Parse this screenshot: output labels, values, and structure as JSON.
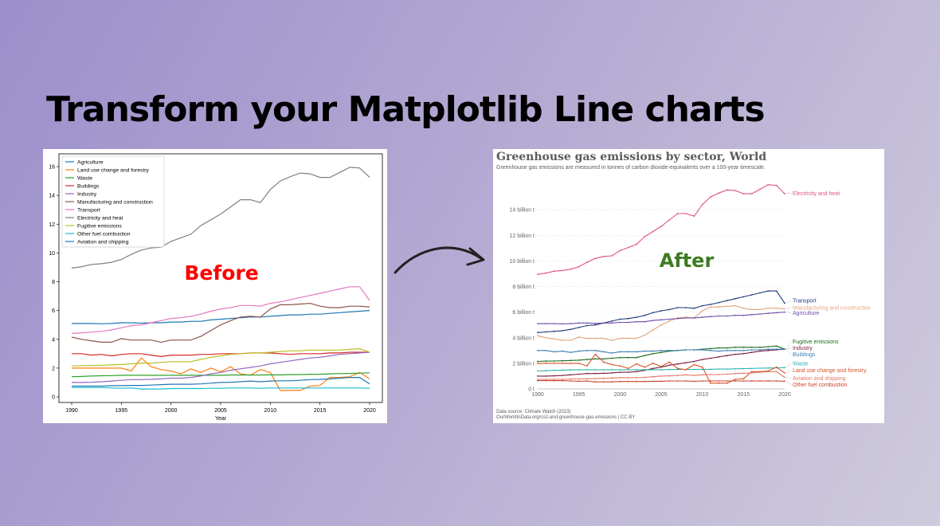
{
  "headline": "Transform your Matplotlib Line charts",
  "before_label": "Before",
  "after_label": "After",
  "before_label_color": "#ff0000",
  "after_label_color": "#3d7b22",
  "after_chart": {
    "title": "Greenhouse gas emissions by sector, World",
    "subtitle": "Greenhouse gas emissions are measured in tonnes of carbon dioxide-equivalents over a 100-year timescale.",
    "source": "Data source: Climate Watch (2023)",
    "credit": "OurWorldInData.org/co2-and-greenhouse-gas-emissions | CC BY"
  },
  "chart_data": [
    {
      "type": "line",
      "xlabel": "Year",
      "ylabel": "",
      "title": "",
      "xlim": [
        1990,
        2020
      ],
      "ylim": [
        0,
        16.5
      ],
      "xticks": [
        1990,
        1995,
        2000,
        2005,
        2010,
        2015,
        2020
      ],
      "yticks": [
        0,
        2,
        4,
        6,
        8,
        10,
        12,
        14,
        16
      ],
      "legend_position": "top-left",
      "grid": false,
      "x": [
        1990,
        1991,
        1992,
        1993,
        1994,
        1995,
        1996,
        1997,
        1998,
        1999,
        2000,
        2001,
        2002,
        2003,
        2004,
        2005,
        2006,
        2007,
        2008,
        2009,
        2010,
        2011,
        2012,
        2013,
        2014,
        2015,
        2016,
        2017,
        2018,
        2019,
        2020
      ],
      "series": [
        {
          "name": "Agriculture",
          "color": "#1f77b4",
          "values": [
            5.1,
            5.1,
            5.1,
            5.08,
            5.1,
            5.15,
            5.15,
            5.12,
            5.15,
            5.15,
            5.2,
            5.2,
            5.25,
            5.25,
            5.35,
            5.4,
            5.45,
            5.5,
            5.55,
            5.55,
            5.6,
            5.65,
            5.7,
            5.7,
            5.75,
            5.75,
            5.8,
            5.85,
            5.9,
            5.95,
            6.0
          ]
        },
        {
          "name": "Land use change and forestry",
          "color": "#ff7f0e",
          "values": [
            2.0,
            2.0,
            2.0,
            2.0,
            2.0,
            2.0,
            1.8,
            2.7,
            2.1,
            1.9,
            1.8,
            1.6,
            1.95,
            1.7,
            2.0,
            1.75,
            2.1,
            1.6,
            1.5,
            1.9,
            1.7,
            0.45,
            0.45,
            0.45,
            0.75,
            0.8,
            1.35,
            1.35,
            1.4,
            1.7,
            1.25
          ]
        },
        {
          "name": "Waste",
          "color": "#2ca02c",
          "values": [
            1.4,
            1.42,
            1.45,
            1.47,
            1.48,
            1.5,
            1.5,
            1.5,
            1.5,
            1.5,
            1.5,
            1.5,
            1.5,
            1.5,
            1.5,
            1.5,
            1.52,
            1.52,
            1.52,
            1.52,
            1.53,
            1.53,
            1.55,
            1.55,
            1.57,
            1.58,
            1.6,
            1.62,
            1.63,
            1.65,
            1.67
          ]
        },
        {
          "name": "Buildings",
          "color": "#d62728",
          "values": [
            3.0,
            3.0,
            2.9,
            2.95,
            2.85,
            2.95,
            3.0,
            3.0,
            2.9,
            2.8,
            2.9,
            2.9,
            2.9,
            2.95,
            2.95,
            3.0,
            3.0,
            3.0,
            3.05,
            3.05,
            3.05,
            3.0,
            2.95,
            3.0,
            3.0,
            3.0,
            3.05,
            3.05,
            3.1,
            3.1,
            3.1
          ]
        },
        {
          "name": "Industry",
          "color": "#9467bd",
          "values": [
            1.0,
            1.0,
            1.02,
            1.05,
            1.1,
            1.15,
            1.2,
            1.2,
            1.22,
            1.25,
            1.3,
            1.3,
            1.35,
            1.45,
            1.6,
            1.7,
            1.85,
            1.95,
            2.05,
            2.15,
            2.3,
            2.4,
            2.5,
            2.6,
            2.7,
            2.75,
            2.85,
            2.95,
            3.0,
            3.05,
            3.1
          ]
        },
        {
          "name": "Manufacturing and construction",
          "color": "#8c564b",
          "values": [
            4.15,
            4.0,
            3.9,
            3.8,
            3.8,
            4.05,
            3.95,
            3.95,
            3.95,
            3.8,
            3.95,
            3.95,
            3.95,
            4.2,
            4.6,
            5.0,
            5.3,
            5.55,
            5.6,
            5.55,
            6.1,
            6.4,
            6.4,
            6.45,
            6.5,
            6.3,
            6.2,
            6.2,
            6.3,
            6.3,
            6.25
          ]
        },
        {
          "name": "Transport",
          "color": "#e377c2",
          "values": [
            4.4,
            4.45,
            4.5,
            4.55,
            4.65,
            4.8,
            4.95,
            5.0,
            5.15,
            5.3,
            5.45,
            5.5,
            5.6,
            5.75,
            5.95,
            6.1,
            6.2,
            6.35,
            6.35,
            6.3,
            6.5,
            6.6,
            6.75,
            6.9,
            7.05,
            7.2,
            7.35,
            7.5,
            7.65,
            7.65,
            6.7
          ]
        },
        {
          "name": "Electricity and heat",
          "color": "#7f7f7f",
          "values": [
            8.95,
            9.05,
            9.2,
            9.25,
            9.35,
            9.55,
            9.9,
            10.2,
            10.35,
            10.4,
            10.8,
            11.05,
            11.3,
            11.9,
            12.3,
            12.7,
            13.2,
            13.7,
            13.7,
            13.5,
            14.4,
            15.0,
            15.3,
            15.55,
            15.5,
            15.25,
            15.25,
            15.6,
            15.95,
            15.9,
            15.25
          ]
        },
        {
          "name": "Fugitive emissions",
          "color": "#bcbd22",
          "values": [
            2.15,
            2.17,
            2.18,
            2.2,
            2.22,
            2.25,
            2.3,
            2.35,
            2.35,
            2.4,
            2.45,
            2.45,
            2.45,
            2.6,
            2.75,
            2.85,
            2.95,
            3.0,
            3.05,
            3.05,
            3.1,
            3.15,
            3.2,
            3.2,
            3.25,
            3.25,
            3.25,
            3.25,
            3.3,
            3.35,
            3.1
          ]
        },
        {
          "name": "Other fuel combustion",
          "color": "#17becf",
          "values": [
            0.65,
            0.65,
            0.65,
            0.65,
            0.62,
            0.6,
            0.62,
            0.55,
            0.55,
            0.55,
            0.58,
            0.58,
            0.58,
            0.58,
            0.6,
            0.6,
            0.62,
            0.62,
            0.62,
            0.6,
            0.62,
            0.62,
            0.62,
            0.62,
            0.62,
            0.62,
            0.62,
            0.62,
            0.62,
            0.62,
            0.6
          ]
        },
        {
          "name": "Aviation and shipping",
          "color": "#1f77b4",
          "values": [
            0.75,
            0.75,
            0.75,
            0.75,
            0.78,
            0.78,
            0.8,
            0.8,
            0.82,
            0.85,
            0.88,
            0.88,
            0.88,
            0.9,
            0.95,
            1.0,
            1.02,
            1.05,
            1.1,
            1.05,
            1.1,
            1.12,
            1.12,
            1.15,
            1.2,
            1.22,
            1.25,
            1.3,
            1.35,
            1.35,
            0.9
          ]
        }
      ]
    },
    {
      "type": "line",
      "title": "Greenhouse gas emissions by sector, World",
      "subtitle": "Greenhouse gas emissions are measured in tonnes of carbon dioxide-equivalents over a 100-year timescale.",
      "xlabel": "",
      "ylabel": "",
      "xlim": [
        1990,
        2020
      ],
      "ylim": [
        0,
        16.5
      ],
      "xticks": [
        1990,
        1995,
        2000,
        2005,
        2010,
        2015,
        2020
      ],
      "yticks": [
        0,
        2,
        4,
        6,
        8,
        10,
        12,
        14
      ],
      "ytick_labels": [
        "0 t",
        "2 billion t",
        "4 billion t",
        "6 billion t",
        "8 billion t",
        "10 billion t",
        "12 billion t",
        "14 billion t"
      ],
      "grid": true,
      "legend_position": "end-of-line labels",
      "x": [
        1990,
        1991,
        1992,
        1993,
        1994,
        1995,
        1996,
        1997,
        1998,
        1999,
        2000,
        2001,
        2002,
        2003,
        2004,
        2005,
        2006,
        2007,
        2008,
        2009,
        2010,
        2011,
        2012,
        2013,
        2014,
        2015,
        2016,
        2017,
        2018,
        2019,
        2020
      ],
      "series": [
        {
          "name": "Electricity and heat",
          "color": "#e2508a",
          "label_y": 15.3,
          "values": [
            8.95,
            9.05,
            9.2,
            9.25,
            9.35,
            9.55,
            9.9,
            10.2,
            10.35,
            10.4,
            10.8,
            11.05,
            11.3,
            11.9,
            12.3,
            12.7,
            13.2,
            13.7,
            13.7,
            13.5,
            14.4,
            15.0,
            15.3,
            15.55,
            15.5,
            15.25,
            15.25,
            15.6,
            15.95,
            15.9,
            15.25
          ]
        },
        {
          "name": "Transport",
          "color": "#1d3a7a",
          "label_y": 6.9,
          "values": [
            4.4,
            4.45,
            4.5,
            4.55,
            4.65,
            4.8,
            4.95,
            5.0,
            5.15,
            5.3,
            5.45,
            5.5,
            5.6,
            5.75,
            5.95,
            6.1,
            6.2,
            6.35,
            6.35,
            6.3,
            6.5,
            6.6,
            6.75,
            6.9,
            7.05,
            7.2,
            7.35,
            7.5,
            7.65,
            7.65,
            6.7
          ]
        },
        {
          "name": "Manufacturing and construction",
          "color": "#e0a57c",
          "label_y": 6.35,
          "values": [
            4.15,
            4.0,
            3.9,
            3.8,
            3.8,
            4.05,
            3.95,
            3.95,
            3.95,
            3.8,
            3.95,
            3.95,
            3.95,
            4.2,
            4.6,
            5.0,
            5.3,
            5.55,
            5.6,
            5.55,
            6.1,
            6.4,
            6.4,
            6.45,
            6.5,
            6.3,
            6.2,
            6.2,
            6.3,
            6.3,
            6.25
          ]
        },
        {
          "name": "Agriculture",
          "color": "#6d4ea8",
          "label_y": 5.95,
          "values": [
            5.1,
            5.1,
            5.1,
            5.08,
            5.1,
            5.15,
            5.15,
            5.12,
            5.15,
            5.15,
            5.2,
            5.2,
            5.25,
            5.25,
            5.35,
            5.4,
            5.45,
            5.5,
            5.55,
            5.55,
            5.6,
            5.65,
            5.7,
            5.7,
            5.75,
            5.75,
            5.8,
            5.85,
            5.9,
            5.95,
            6.0
          ]
        },
        {
          "name": "Fugitive emissions",
          "color": "#1e6b1e",
          "label_y": 3.7,
          "values": [
            2.15,
            2.17,
            2.18,
            2.2,
            2.22,
            2.25,
            2.3,
            2.35,
            2.35,
            2.4,
            2.45,
            2.45,
            2.45,
            2.6,
            2.75,
            2.85,
            2.95,
            3.0,
            3.05,
            3.05,
            3.1,
            3.15,
            3.2,
            3.2,
            3.25,
            3.25,
            3.25,
            3.25,
            3.3,
            3.35,
            3.1
          ]
        },
        {
          "name": "Industry",
          "color": "#7a1f3d",
          "label_y": 3.2,
          "values": [
            1.0,
            1.0,
            1.02,
            1.05,
            1.1,
            1.15,
            1.2,
            1.2,
            1.22,
            1.25,
            1.3,
            1.3,
            1.35,
            1.45,
            1.6,
            1.7,
            1.85,
            1.95,
            2.05,
            2.15,
            2.3,
            2.4,
            2.5,
            2.6,
            2.7,
            2.75,
            2.85,
            2.95,
            3.0,
            3.05,
            3.1
          ]
        },
        {
          "name": "Buildings",
          "color": "#3b7fb5",
          "label_y": 2.7,
          "values": [
            3.0,
            3.0,
            2.9,
            2.95,
            2.85,
            2.95,
            3.0,
            3.0,
            2.9,
            2.8,
            2.9,
            2.9,
            2.9,
            2.95,
            2.95,
            3.0,
            3.0,
            3.0,
            3.05,
            3.05,
            3.05,
            3.0,
            2.95,
            3.0,
            3.0,
            3.0,
            3.05,
            3.05,
            3.1,
            3.1,
            3.1
          ]
        },
        {
          "name": "Waste",
          "color": "#2fb5b0",
          "label_y": 2.0,
          "values": [
            1.4,
            1.42,
            1.45,
            1.47,
            1.48,
            1.5,
            1.5,
            1.5,
            1.5,
            1.5,
            1.5,
            1.5,
            1.5,
            1.5,
            1.5,
            1.5,
            1.52,
            1.52,
            1.52,
            1.52,
            1.53,
            1.53,
            1.55,
            1.55,
            1.57,
            1.58,
            1.6,
            1.62,
            1.63,
            1.65,
            1.67
          ]
        },
        {
          "name": "Land use change and forestry",
          "color": "#d8532a",
          "label_y": 1.45,
          "values": [
            2.0,
            2.0,
            2.0,
            2.0,
            2.0,
            2.0,
            1.8,
            2.7,
            2.1,
            1.9,
            1.8,
            1.6,
            1.95,
            1.7,
            2.0,
            1.75,
            2.1,
            1.6,
            1.5,
            1.9,
            1.7,
            0.45,
            0.45,
            0.45,
            0.75,
            0.8,
            1.35,
            1.35,
            1.4,
            1.7,
            1.25
          ]
        },
        {
          "name": "Aviation and shipping",
          "color": "#e07a6a",
          "label_y": 0.85,
          "values": [
            0.75,
            0.75,
            0.75,
            0.75,
            0.78,
            0.78,
            0.8,
            0.8,
            0.82,
            0.85,
            0.88,
            0.88,
            0.88,
            0.9,
            0.95,
            1.0,
            1.02,
            1.05,
            1.1,
            1.05,
            1.1,
            1.12,
            1.12,
            1.15,
            1.2,
            1.22,
            1.25,
            1.3,
            1.35,
            1.35,
            0.9
          ]
        },
        {
          "name": "Other fuel combustion",
          "color": "#c8452f",
          "label_y": 0.35,
          "values": [
            0.65,
            0.65,
            0.65,
            0.65,
            0.62,
            0.6,
            0.62,
            0.55,
            0.55,
            0.55,
            0.58,
            0.58,
            0.58,
            0.58,
            0.6,
            0.6,
            0.62,
            0.62,
            0.62,
            0.6,
            0.62,
            0.62,
            0.62,
            0.62,
            0.62,
            0.62,
            0.62,
            0.62,
            0.62,
            0.62,
            0.6
          ]
        }
      ]
    }
  ]
}
